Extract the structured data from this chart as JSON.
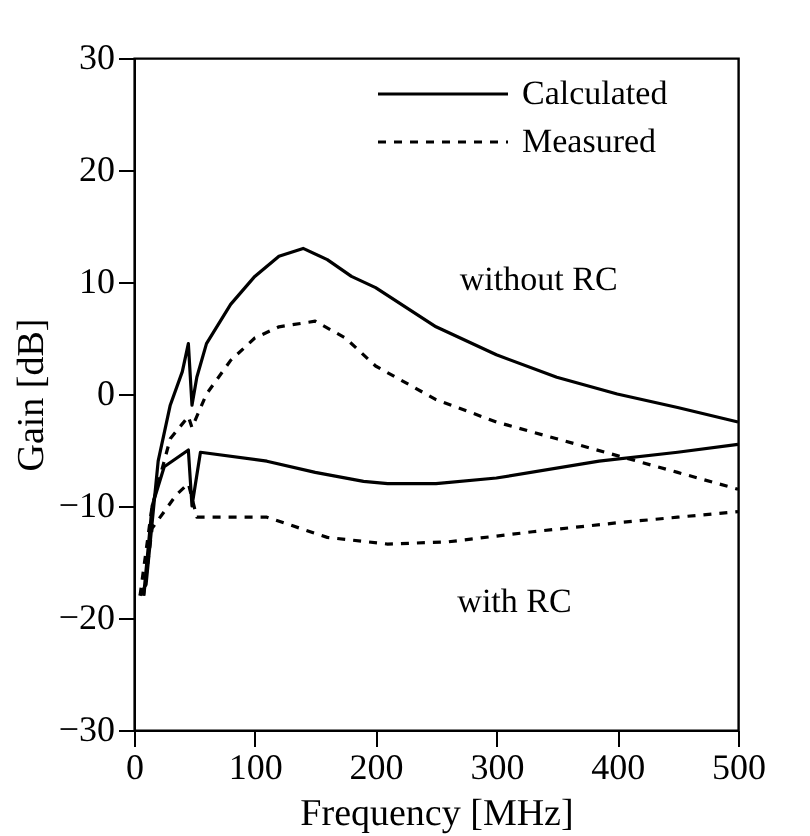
{
  "chart_data": {
    "type": "line",
    "xlabel": "Frequency [MHz]",
    "ylabel": "Gain [dB]",
    "xlim": [
      0,
      500
    ],
    "ylim": [
      -30,
      30
    ],
    "xticks": [
      0,
      100,
      200,
      300,
      400,
      500
    ],
    "yticks": [
      -30,
      -20,
      -10,
      0,
      10,
      20,
      30
    ],
    "grid": false,
    "legend": "top right",
    "marker": "none",
    "series": [
      {
        "name": "Calculated",
        "color": "#000000",
        "line_style": "solid",
        "x": [
          5,
          10,
          20,
          30,
          40,
          45,
          48,
          52,
          60,
          80,
          100,
          120,
          140,
          160,
          180,
          200,
          250,
          300,
          350,
          400,
          450,
          500
        ],
        "values": [
          -18,
          -17,
          -6,
          -1,
          2,
          4.5,
          -1,
          1.5,
          4.5,
          8,
          10.5,
          12.3,
          13,
          12,
          10.5,
          9.5,
          6,
          3.5,
          1.5,
          0,
          -1.2,
          -2.5
        ]
      },
      {
        "name": "Measured",
        "color": "#000000",
        "line_style": "dashed",
        "x": [
          5,
          15,
          30,
          45,
          48,
          60,
          80,
          100,
          120,
          150,
          175,
          200,
          250,
          300,
          350,
          400,
          450,
          500
        ],
        "values": [
          -18,
          -10,
          -4,
          -2,
          -3,
          0,
          3,
          5,
          6,
          6.5,
          5,
          2.5,
          -0.5,
          -2.5,
          -4,
          -5.5,
          -7,
          -8.5
        ]
      },
      {
        "color": "#000000",
        "line_style": "solid",
        "x": [
          8,
          15,
          25,
          45,
          48,
          55,
          110,
          150,
          190,
          210,
          250,
          300,
          385,
          450,
          500
        ],
        "values": [
          -18,
          -10,
          -6.5,
          -5,
          -10,
          -5.2,
          -6,
          -7,
          -7.8,
          -8,
          -8,
          -7.5,
          -6,
          -5.2,
          -4.5
        ]
      },
      {
        "color": "#000000",
        "line_style": "dashed",
        "x": [
          8,
          15,
          35,
          45,
          48,
          52,
          110,
          160,
          210,
          260,
          330,
          400,
          450,
          500
        ],
        "values": [
          -18,
          -12,
          -9,
          -8,
          -9.3,
          -11,
          -11,
          -12.8,
          -13.4,
          -13.2,
          -12.3,
          -11.5,
          -11,
          -10.5
        ]
      }
    ],
    "annotations": [
      "without RC",
      "with RC"
    ]
  }
}
